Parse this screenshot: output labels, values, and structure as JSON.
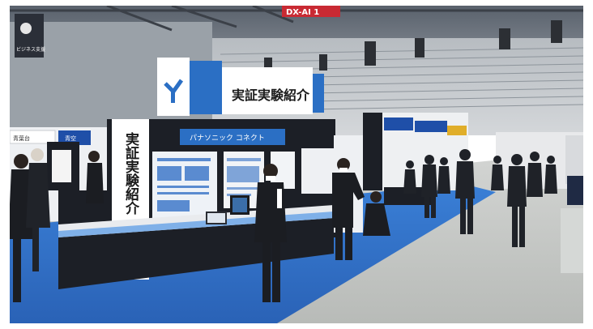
{
  "signs": {
    "top_banner": "DX-AI 1",
    "main_header": "実証実験紹介",
    "vertical_pillar": "実証実験紹介",
    "panasonic_header": "パナソニック コネクト",
    "left_top_sign": "ビジネス支援",
    "left_booth_label": "青空",
    "far_left_label": "青葉台"
  },
  "colors": {
    "carpet": "#2f72c8",
    "floor": "#c9ccc9",
    "booth_white": "#f2f3f5",
    "booth_dark": "#1c1f26",
    "header_blue": "#1f4fa8",
    "banner_red": "#c92a33"
  },
  "icons": [
    "logo-mark-icon"
  ]
}
